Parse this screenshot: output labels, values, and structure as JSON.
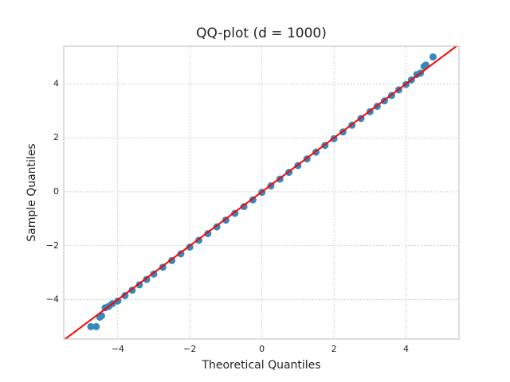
{
  "chart_data": {
    "type": "scatter",
    "title": "QQ-plot (d = 1000)",
    "x_label": "Theoretical Quantiles",
    "y_label": "Sample Quantiles",
    "x": [
      -4.75,
      -4.6,
      -4.5,
      -4.45,
      -4.35,
      -4.25,
      -4.15,
      -4.0,
      -3.8,
      -3.6,
      -3.4,
      -3.2,
      -3.0,
      -2.75,
      -2.5,
      -2.25,
      -2.0,
      -1.75,
      -1.5,
      -1.25,
      -1.0,
      -0.75,
      -0.5,
      -0.25,
      0,
      0.25,
      0.5,
      0.75,
      1.0,
      1.25,
      1.5,
      1.75,
      2.0,
      2.25,
      2.5,
      2.75,
      3.0,
      3.2,
      3.4,
      3.6,
      3.8,
      4.0,
      4.15,
      4.3,
      4.4,
      4.5,
      4.55,
      4.75
    ],
    "values": [
      -5.0,
      -5.0,
      -4.65,
      -4.6,
      -4.3,
      -4.25,
      -4.15,
      -4.05,
      -3.85,
      -3.65,
      -3.45,
      -3.25,
      -3.05,
      -2.8,
      -2.55,
      -2.3,
      -2.05,
      -1.8,
      -1.55,
      -1.3,
      -1.05,
      -0.8,
      -0.55,
      -0.3,
      -0.02,
      0.22,
      0.47,
      0.72,
      0.97,
      1.22,
      1.47,
      1.72,
      1.97,
      2.22,
      2.47,
      2.72,
      2.97,
      3.17,
      3.37,
      3.57,
      3.78,
      3.98,
      4.15,
      4.35,
      4.4,
      4.65,
      4.7,
      5.0
    ],
    "color": "#348abd",
    "reference_line": {
      "slope": 1,
      "intercept": 0,
      "color": "#ff0000"
    },
    "xlim": [
      -5.5,
      5.47
    ],
    "ylim": [
      -5.46,
      5.4
    ],
    "xticks": [
      {
        "value": -4,
        "label": "−4"
      },
      {
        "value": -2,
        "label": "−2"
      },
      0,
      2,
      4
    ],
    "yticks": [
      {
        "value": -4,
        "label": "−4"
      },
      {
        "value": -2,
        "label": "−2"
      },
      0,
      2,
      4
    ],
    "grid": true
  }
}
